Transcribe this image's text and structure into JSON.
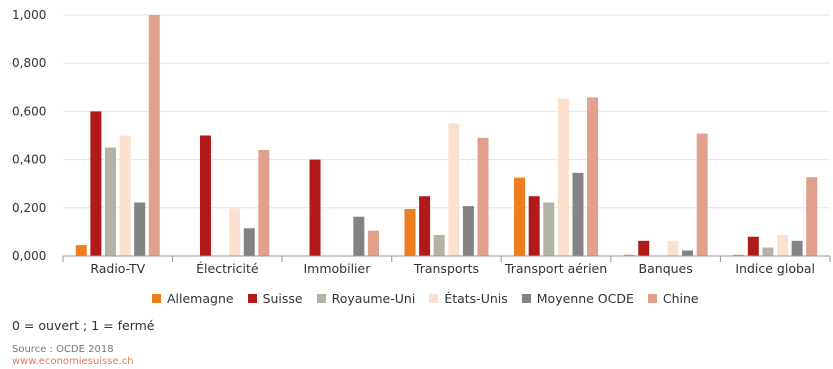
{
  "chart_data": {
    "type": "bar",
    "categories": [
      "Radio-TV",
      "Électricité",
      "Immobilier",
      "Transports",
      "Transport aérien",
      "Banques",
      "Indice global"
    ],
    "series": [
      {
        "name": "Allemagne",
        "color": "#ee7d1e",
        "values": [
          0.045,
          0,
          0,
          0.195,
          0.325,
          0.005,
          0.005
        ]
      },
      {
        "name": "Suisse",
        "color": "#b21a1a",
        "values": [
          0.6,
          0.5,
          0.4,
          0.248,
          0.248,
          0.063,
          0.08
        ]
      },
      {
        "name": "Royaume-Uni",
        "color": "#b3b2a4",
        "values": [
          0.45,
          0,
          0,
          0.087,
          0.222,
          0,
          0.035
        ]
      },
      {
        "name": "États-Unis",
        "color": "#fbe0cd",
        "values": [
          0.5,
          0.197,
          0,
          0.55,
          0.653,
          0.063,
          0.087
        ]
      },
      {
        "name": "Moyenne OCDE",
        "color": "#838383",
        "values": [
          0.222,
          0.115,
          0.163,
          0.207,
          0.345,
          0.023,
          0.063
        ]
      },
      {
        "name": "Chine",
        "color": "#e0a08c",
        "values": [
          1.0,
          0.44,
          0.105,
          0.49,
          0.658,
          0.508,
          0.327
        ]
      }
    ],
    "yticks": [
      "0,000",
      "0,200",
      "0,400",
      "0,600",
      "0,800",
      "1,000"
    ],
    "ylim": [
      0,
      1
    ],
    "grid": true,
    "legend_position": "bottom"
  },
  "note": "0 = ouvert ; 1 = fermé",
  "source": "Source : OCDE 2018",
  "link": "www.economiesuisse.ch"
}
